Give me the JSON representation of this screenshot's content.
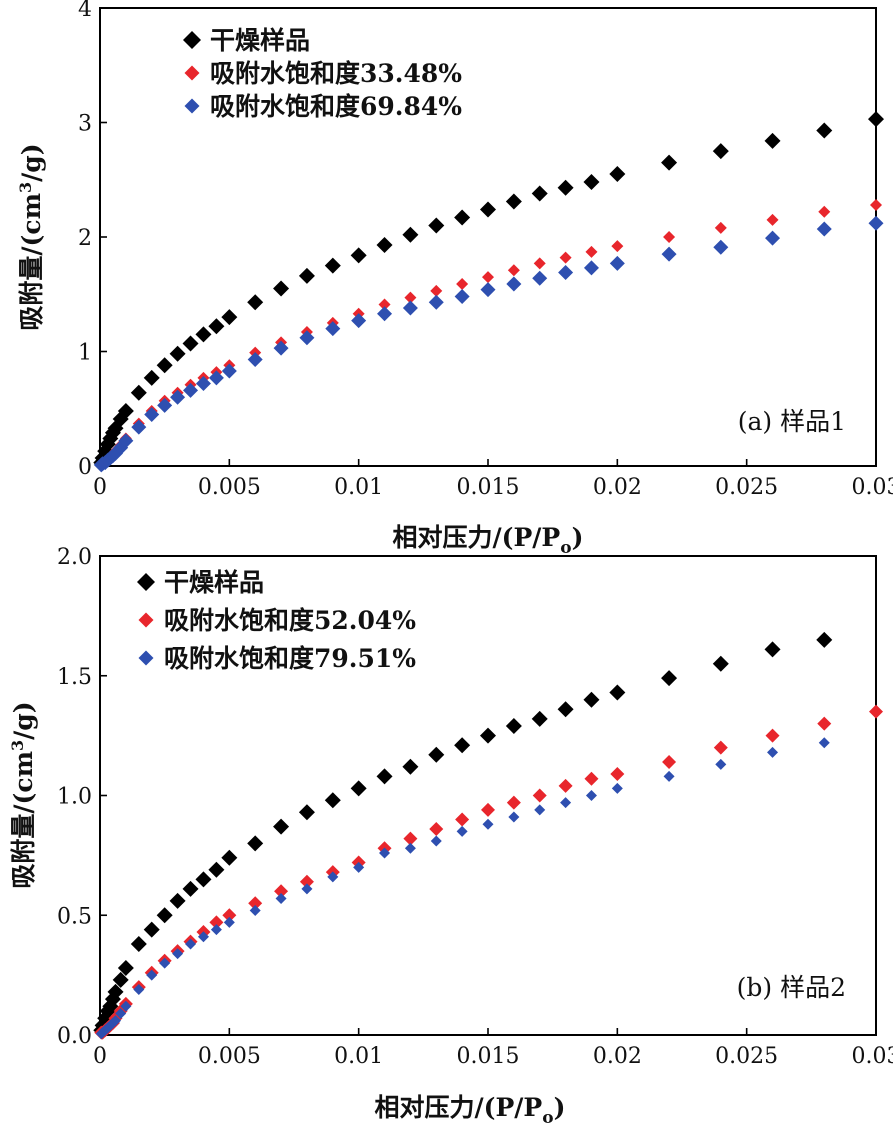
{
  "chart_data": [
    {
      "type": "scatter",
      "panel_label": "(a) 样品1",
      "xlabel": "相对压力/(P/P",
      "xlabel_sub": "o",
      "xlabel_close": ")",
      "ylabel": "吸附量/(cm",
      "ylabel_sup": "3",
      "ylabel_close": "/g)",
      "xlim": [
        0,
        0.03
      ],
      "ylim": [
        0,
        4
      ],
      "x_ticks": [
        "0",
        "0.005",
        "0.01",
        "0.015",
        "0.02",
        "0.025",
        "0.03"
      ],
      "y_ticks": [
        "0",
        "1",
        "2",
        "3",
        "4"
      ],
      "legend_position": "top-left",
      "series": [
        {
          "name": "干燥样品",
          "color": "#000000",
          "marker": "diamond",
          "x": [
            5e-05,
            0.0001,
            0.0002,
            0.0003,
            0.0004,
            0.0005,
            0.0006,
            0.0008,
            0.001,
            0.0015,
            0.002,
            0.0025,
            0.003,
            0.0035,
            0.004,
            0.0045,
            0.005,
            0.006,
            0.007,
            0.008,
            0.009,
            0.01,
            0.011,
            0.012,
            0.013,
            0.014,
            0.015,
            0.016,
            0.017,
            0.018,
            0.019,
            0.02,
            0.022,
            0.024,
            0.026,
            0.028,
            0.03
          ],
          "y": [
            0.03,
            0.07,
            0.13,
            0.19,
            0.24,
            0.29,
            0.33,
            0.41,
            0.48,
            0.64,
            0.77,
            0.88,
            0.98,
            1.07,
            1.15,
            1.22,
            1.3,
            1.43,
            1.55,
            1.66,
            1.75,
            1.84,
            1.93,
            2.02,
            2.1,
            2.17,
            2.24,
            2.31,
            2.38,
            2.43,
            2.48,
            2.55,
            2.65,
            2.75,
            2.84,
            2.93,
            3.03
          ]
        },
        {
          "name": "吸附水饱和度33.48%",
          "color": "#e8262c",
          "marker": "diamond",
          "x": [
            5e-05,
            0.0001,
            0.0002,
            0.0003,
            0.0004,
            0.0005,
            0.0006,
            0.0008,
            0.001,
            0.0015,
            0.002,
            0.0025,
            0.003,
            0.0035,
            0.004,
            0.0045,
            0.005,
            0.006,
            0.007,
            0.008,
            0.009,
            0.01,
            0.011,
            0.012,
            0.013,
            0.014,
            0.015,
            0.016,
            0.017,
            0.018,
            0.019,
            0.02,
            0.022,
            0.024,
            0.026,
            0.028,
            0.03
          ],
          "y": [
            0.01,
            0.02,
            0.04,
            0.06,
            0.08,
            0.1,
            0.13,
            0.18,
            0.24,
            0.37,
            0.48,
            0.57,
            0.64,
            0.71,
            0.77,
            0.82,
            0.88,
            0.99,
            1.08,
            1.17,
            1.25,
            1.33,
            1.41,
            1.47,
            1.53,
            1.59,
            1.65,
            1.71,
            1.77,
            1.82,
            1.87,
            1.92,
            2.0,
            2.08,
            2.15,
            2.22,
            2.28
          ]
        },
        {
          "name": "吸附水饱和度69.84%",
          "color": "#2e4fb0",
          "marker": "diamond",
          "x": [
            5e-05,
            0.0001,
            0.0002,
            0.0003,
            0.0004,
            0.0005,
            0.0006,
            0.0008,
            0.001,
            0.0015,
            0.002,
            0.0025,
            0.003,
            0.0035,
            0.004,
            0.0045,
            0.005,
            0.006,
            0.007,
            0.008,
            0.009,
            0.01,
            0.011,
            0.012,
            0.013,
            0.014,
            0.015,
            0.016,
            0.017,
            0.018,
            0.019,
            0.02,
            0.022,
            0.024,
            0.026,
            0.028,
            0.03
          ],
          "y": [
            0.01,
            0.02,
            0.03,
            0.05,
            0.07,
            0.09,
            0.11,
            0.16,
            0.22,
            0.34,
            0.45,
            0.53,
            0.6,
            0.66,
            0.72,
            0.77,
            0.83,
            0.93,
            1.03,
            1.12,
            1.2,
            1.27,
            1.33,
            1.38,
            1.43,
            1.48,
            1.54,
            1.59,
            1.64,
            1.69,
            1.73,
            1.77,
            1.85,
            1.91,
            1.99,
            2.07,
            2.12
          ]
        }
      ]
    },
    {
      "type": "scatter",
      "panel_label": "(b) 样品2",
      "xlabel": "相对压力/(P/P",
      "xlabel_sub": "o",
      "xlabel_close": ")",
      "ylabel": "吸附量/(cm",
      "ylabel_sup": "3",
      "ylabel_close": "/g)",
      "xlim": [
        0,
        0.03
      ],
      "ylim": [
        0,
        2.0
      ],
      "x_ticks": [
        "0",
        "0.005",
        "0.01",
        "0.015",
        "0.02",
        "0.025",
        "0.03"
      ],
      "y_ticks": [
        "0.0",
        "0.5",
        "1.0",
        "1.5",
        "2.0"
      ],
      "legend_position": "top-left",
      "series": [
        {
          "name": "干燥样品",
          "color": "#000000",
          "marker": "diamond",
          "x": [
            5e-05,
            0.0001,
            0.0002,
            0.0003,
            0.0004,
            0.0005,
            0.0006,
            0.0008,
            0.001,
            0.0015,
            0.002,
            0.0025,
            0.003,
            0.0035,
            0.004,
            0.0045,
            0.005,
            0.006,
            0.007,
            0.008,
            0.009,
            0.01,
            0.011,
            0.012,
            0.013,
            0.014,
            0.015,
            0.016,
            0.017,
            0.018,
            0.019,
            0.02,
            0.022,
            0.024,
            0.026,
            0.028
          ],
          "y": [
            0.02,
            0.04,
            0.07,
            0.1,
            0.12,
            0.15,
            0.18,
            0.23,
            0.28,
            0.38,
            0.44,
            0.5,
            0.56,
            0.61,
            0.65,
            0.69,
            0.74,
            0.8,
            0.87,
            0.93,
            0.98,
            1.03,
            1.08,
            1.12,
            1.17,
            1.21,
            1.25,
            1.29,
            1.32,
            1.36,
            1.4,
            1.43,
            1.49,
            1.55,
            1.61,
            1.65
          ]
        },
        {
          "name": "吸附水饱和度52.04%",
          "color": "#e8262c",
          "marker": "diamond",
          "x": [
            5e-05,
            0.0001,
            0.0002,
            0.0003,
            0.0004,
            0.0005,
            0.0006,
            0.0008,
            0.001,
            0.0015,
            0.002,
            0.0025,
            0.003,
            0.0035,
            0.004,
            0.0045,
            0.005,
            0.006,
            0.007,
            0.008,
            0.009,
            0.01,
            0.011,
            0.012,
            0.013,
            0.014,
            0.015,
            0.016,
            0.017,
            0.018,
            0.019,
            0.02,
            0.022,
            0.024,
            0.026,
            0.028,
            0.03
          ],
          "y": [
            0.01,
            0.01,
            0.02,
            0.03,
            0.04,
            0.05,
            0.07,
            0.1,
            0.13,
            0.2,
            0.26,
            0.31,
            0.35,
            0.39,
            0.43,
            0.47,
            0.5,
            0.55,
            0.6,
            0.64,
            0.68,
            0.72,
            0.78,
            0.82,
            0.86,
            0.9,
            0.94,
            0.97,
            1.0,
            1.04,
            1.07,
            1.09,
            1.14,
            1.2,
            1.25,
            1.3,
            1.35
          ]
        },
        {
          "name": "吸附水饱和度79.51%",
          "color": "#2e4fb0",
          "marker": "diamond",
          "x": [
            5e-05,
            0.0001,
            0.0002,
            0.0003,
            0.0004,
            0.0005,
            0.0006,
            0.0008,
            0.001,
            0.0015,
            0.002,
            0.0025,
            0.003,
            0.0035,
            0.004,
            0.0045,
            0.005,
            0.006,
            0.007,
            0.008,
            0.009,
            0.01,
            0.011,
            0.012,
            0.013,
            0.014,
            0.015,
            0.016,
            0.017,
            0.018,
            0.019,
            0.02,
            0.022,
            0.024,
            0.026,
            0.028
          ],
          "y": [
            0.005,
            0.01,
            0.02,
            0.03,
            0.04,
            0.05,
            0.06,
            0.09,
            0.12,
            0.19,
            0.25,
            0.3,
            0.34,
            0.38,
            0.41,
            0.44,
            0.47,
            0.52,
            0.57,
            0.61,
            0.66,
            0.7,
            0.76,
            0.78,
            0.81,
            0.85,
            0.88,
            0.91,
            0.94,
            0.97,
            1.0,
            1.03,
            1.08,
            1.13,
            1.18,
            1.22
          ]
        }
      ]
    }
  ]
}
